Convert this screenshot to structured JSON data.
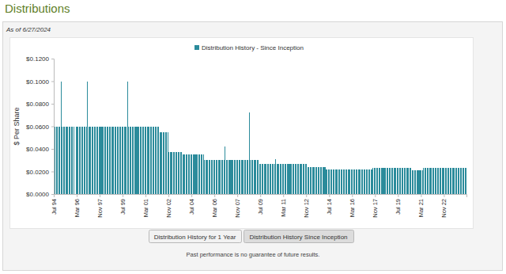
{
  "header": {
    "title": "Distributions",
    "subtitle": "As of 6/27/2024"
  },
  "buttons": [
    "Distribution History for 1 Year",
    "Distribution History Since Inception"
  ],
  "footnote": "Past performance is no guarantee of future results.",
  "chart_data": {
    "type": "bar",
    "y_label": "$ Per Share",
    "legend": "top",
    "grid": false,
    "ylim": [
      0,
      0.12
    ],
    "yticks": [
      {
        "value": 0,
        "label": "$0.0000"
      },
      {
        "value": 0.02,
        "label": "$0.0200"
      },
      {
        "value": 0.04,
        "label": "$0.0400"
      },
      {
        "value": 0.06,
        "label": "$0.0600"
      },
      {
        "value": 0.08,
        "label": "$0.0800"
      },
      {
        "value": 0.1,
        "label": "$0.1000"
      },
      {
        "value": 0.12,
        "label": "$0.1200"
      }
    ],
    "categories": [
      "Jul 94",
      null,
      null,
      null,
      null,
      null,
      null,
      null,
      null,
      null,
      null,
      null,
      null,
      null,
      null,
      null,
      null,
      null,
      null,
      null,
      "Mar 96",
      null,
      null,
      null,
      null,
      null,
      null,
      null,
      null,
      null,
      null,
      null,
      null,
      null,
      null,
      null,
      null,
      null,
      null,
      null,
      "Nov 97",
      null,
      null,
      null,
      null,
      null,
      null,
      null,
      null,
      null,
      null,
      null,
      null,
      null,
      null,
      null,
      null,
      null,
      null,
      null,
      "Jul 99",
      null,
      null,
      null,
      null,
      null,
      null,
      null,
      null,
      null,
      null,
      null,
      null,
      null,
      null,
      null,
      null,
      null,
      null,
      null,
      "Mar 01",
      null,
      null,
      null,
      null,
      null,
      null,
      null,
      null,
      null,
      null,
      null,
      null,
      null,
      null,
      null,
      null,
      null,
      null,
      null,
      "Nov 02",
      null,
      null,
      null,
      null,
      null,
      null,
      null,
      null,
      null,
      null,
      null,
      null,
      null,
      null,
      null,
      null,
      null,
      null,
      null,
      "Jul 04",
      null,
      null,
      null,
      null,
      null,
      null,
      null,
      null,
      null,
      null,
      null,
      null,
      null,
      null,
      null,
      null,
      null,
      null,
      null,
      "Mar 06",
      null,
      null,
      null,
      null,
      null,
      null,
      null,
      null,
      null,
      null,
      null,
      null,
      null,
      null,
      null,
      null,
      null,
      null,
      null,
      "Nov 07",
      null,
      null,
      null,
      null,
      null,
      null,
      null,
      null,
      null,
      null,
      null,
      null,
      null,
      null,
      null,
      null,
      null,
      null,
      null,
      "Jul 09",
      null,
      null,
      null,
      null,
      null,
      null,
      null,
      null,
      null,
      null,
      null,
      null,
      null,
      null,
      null,
      null,
      null,
      null,
      null,
      "Mar 11",
      null,
      null,
      null,
      null,
      null,
      null,
      null,
      null,
      null,
      null,
      null,
      null,
      null,
      null,
      null,
      null,
      null,
      null,
      null,
      "Nov 12",
      null,
      null,
      null,
      null,
      null,
      null,
      null,
      null,
      null,
      null,
      null,
      null,
      null,
      null,
      null,
      null,
      null,
      null,
      null,
      "Jul 14",
      null,
      null,
      null,
      null,
      null,
      null,
      null,
      null,
      null,
      null,
      null,
      null,
      null,
      null,
      null,
      null,
      null,
      null,
      null,
      "Mar 16",
      null,
      null,
      null,
      null,
      null,
      null,
      null,
      null,
      null,
      null,
      null,
      null,
      null,
      null,
      null,
      null,
      null,
      null,
      null,
      "Nov 17",
      null,
      null,
      null,
      null,
      null,
      null,
      null,
      null,
      null,
      null,
      null,
      null,
      null,
      null,
      null,
      null,
      null,
      null,
      null,
      "Jul 19",
      null,
      null,
      null,
      null,
      null,
      null,
      null,
      null,
      null,
      null,
      null,
      null,
      null,
      null,
      null,
      null,
      null,
      null,
      null,
      "Mar 21",
      null,
      null,
      null,
      null,
      null,
      null,
      null,
      null,
      null,
      null,
      null,
      null,
      null,
      null,
      null,
      null,
      null,
      null,
      null,
      "Nov 22",
      null,
      null,
      null,
      null,
      null,
      null,
      null,
      null,
      null,
      null,
      null,
      null,
      null,
      null,
      null,
      null,
      null,
      null,
      null
    ],
    "series": [
      {
        "name": "Distribution History - Since Inception",
        "color": "#2b8b9b",
        "values": [
          0.06,
          0.06,
          0.06,
          0.06,
          0.06,
          0.06,
          0.1,
          0.06,
          0.06,
          0.06,
          0.06,
          0.06,
          0.06,
          0.06,
          0.06,
          0.06,
          0.06,
          0.06,
          null,
          0.06,
          0.06,
          0.06,
          0.06,
          0.06,
          0.06,
          0.06,
          0.06,
          0.06,
          0.06,
          0.1,
          0.06,
          0.06,
          0.06,
          0.06,
          0.06,
          0.06,
          0.06,
          0.06,
          0.06,
          0.06,
          0.06,
          0.06,
          0.06,
          0.06,
          0.06,
          0.06,
          0.06,
          0.06,
          0.06,
          0.06,
          0.06,
          0.06,
          0.06,
          0.06,
          0.06,
          0.06,
          0.06,
          0.06,
          0.06,
          0.06,
          0.06,
          0.06,
          0.06,
          0.06,
          0.1,
          0.06,
          0.06,
          0.06,
          0.06,
          0.06,
          0.06,
          0.06,
          0.06,
          0.06,
          0.06,
          0.06,
          0.06,
          0.06,
          0.06,
          0.06,
          0.06,
          0.06,
          0.06,
          0.06,
          0.06,
          0.06,
          0.06,
          0.06,
          0.06,
          0.06,
          0.06,
          0.06,
          0.055,
          0.055,
          0.055,
          0.055,
          0.055,
          0.055,
          0.055,
          0.055,
          0.0375,
          0.0375,
          0.0375,
          0.0375,
          0.0375,
          0.0375,
          0.0375,
          0.0375,
          0.0375,
          0.0375,
          0.0375,
          0.0375,
          0.035,
          0.035,
          0.035,
          0.035,
          0.035,
          0.035,
          0.035,
          0.035,
          0.035,
          0.035,
          0.035,
          0.035,
          0.035,
          0.035,
          0.035,
          0.035,
          0.035,
          0.035,
          0.035,
          0.03,
          0.03,
          0.03,
          0.03,
          0.03,
          0.03,
          0.03,
          0.03,
          0.03,
          0.03,
          0.03,
          0.03,
          0.03,
          0.03,
          0.03,
          0.03,
          0.03,
          0.03,
          0.042,
          0.03,
          0.03,
          0.03,
          0.03,
          0.03,
          0.03,
          0.03,
          0.03,
          0.03,
          0.03,
          0.03,
          0.03,
          0.03,
          0.03,
          0.03,
          0.03,
          0.03,
          0.03,
          0.03,
          0.03,
          0.072,
          0.03,
          0.03,
          0.03,
          0.03,
          0.03,
          0.03,
          0.03,
          0.03,
          0.027,
          0.027,
          0.027,
          0.027,
          0.027,
          0.027,
          0.027,
          0.027,
          0.027,
          0.027,
          0.027,
          0.027,
          0.027,
          0.027,
          0.031,
          0.027,
          0.027,
          0.027,
          0.027,
          0.027,
          0.027,
          0.027,
          0.027,
          0.027,
          0.027,
          0.027,
          0.027,
          0.027,
          0.027,
          0.027,
          0.027,
          0.027,
          0.027,
          0.027,
          0.027,
          0.027,
          0.027,
          0.027,
          0.027,
          0.027,
          0.027,
          0.027,
          0.024,
          0.024,
          0.024,
          0.024,
          0.024,
          0.024,
          0.024,
          0.024,
          0.024,
          0.024,
          0.024,
          0.024,
          0.024,
          0.024,
          0.024,
          0.024,
          0.022,
          0.022,
          0.022,
          0.022,
          0.022,
          0.022,
          0.022,
          0.022,
          0.022,
          0.022,
          0.022,
          0.022,
          0.022,
          0.022,
          0.022,
          0.022,
          0.022,
          0.022,
          0.022,
          0.022,
          0.022,
          0.022,
          0.022,
          0.022,
          0.022,
          0.022,
          0.022,
          0.022,
          0.022,
          0.022,
          0.022,
          0.022,
          0.022,
          0.022,
          0.022,
          0.022,
          0.022,
          0.022,
          0.022,
          0.022,
          0.022,
          0.023,
          0.023,
          0.023,
          0.023,
          0.023,
          0.023,
          0.023,
          0.023,
          0.023,
          0.023,
          0.023,
          0.023,
          0.023,
          0.023,
          0.023,
          0.023,
          0.023,
          0.023,
          0.023,
          0.023,
          0.023,
          0.023,
          0.023,
          0.023,
          0.023,
          0.023,
          0.023,
          0.023,
          0.023,
          0.023,
          0.023,
          0.023,
          0.023,
          0.023,
          0.021,
          0.021,
          0.021,
          0.021,
          0.021,
          0.021,
          0.021,
          0.021,
          0.021,
          0.021,
          0.023,
          0.023,
          0.023,
          0.023,
          0.023,
          0.023,
          0.023,
          0.023,
          0.023,
          0.023,
          0.023,
          0.023,
          0.023,
          0.023,
          0.023,
          0.023,
          0.023,
          0.023,
          0.023,
          0.023,
          0.023,
          0.023,
          0.023,
          0.023,
          0.023,
          0.023,
          0.023,
          0.023,
          0.023,
          0.023,
          0.023,
          0.023,
          0.023,
          0.023,
          0.023,
          0.023,
          0.023,
          0.023
        ]
      }
    ]
  }
}
